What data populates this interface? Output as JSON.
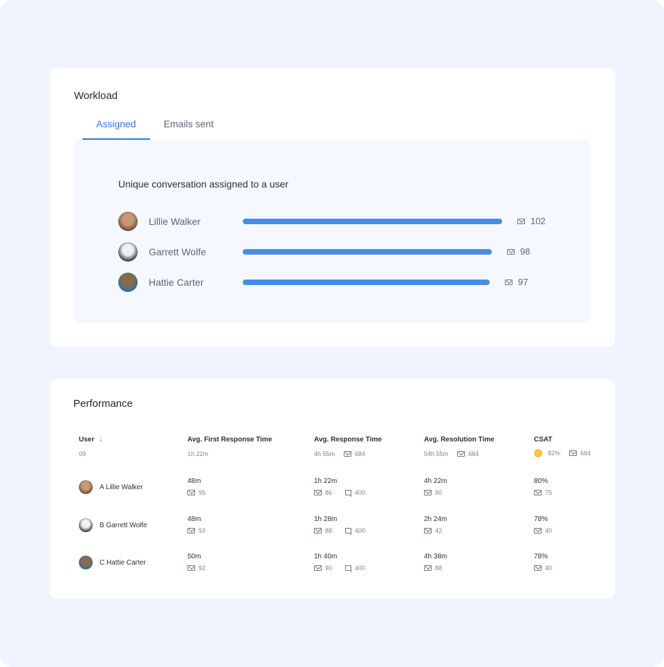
{
  "workload": {
    "title": "Workload",
    "tabs": [
      {
        "label": "Assigned",
        "active": true
      },
      {
        "label": "Emails sent",
        "active": false
      }
    ],
    "panel_title": "Unique conversation assigned to a user",
    "accent": "#4a8be3",
    "rows": [
      {
        "name": "Lillie Walker",
        "value": "102",
        "n": 102
      },
      {
        "name": "Garrett Wolfe",
        "value": "98",
        "n": 98
      },
      {
        "name": "Hattie Carter",
        "value": "97",
        "n": 97
      }
    ]
  },
  "performance": {
    "title": "Performance",
    "headers": [
      "User",
      "Avg. First Response Time",
      "Avg. Response Time",
      "Avg. Resolution Time",
      "CSAT"
    ],
    "summary": {
      "user": "09",
      "first": "1h 22m",
      "resp": "4h 55m",
      "resp_mail": "684",
      "resol": "54h 55m",
      "resol_mail": "684",
      "csat": "82%",
      "csat_mail": "684"
    },
    "rows": [
      {
        "user": "A Lillie Walker",
        "first": "48m",
        "first_mail": "95",
        "resp": "1h 22m",
        "resp_mail": "86",
        "resp_chat": "400",
        "resol": "4h 22m",
        "resol_mail": "90",
        "csat": "80%",
        "csat_mail": "75"
      },
      {
        "user": "B Garrett Wolfe",
        "first": "48m",
        "first_mail": "93",
        "resp": "1h 28m",
        "resp_mail": "88",
        "resp_chat": "400",
        "resol": "2h 24m",
        "resol_mail": "42",
        "csat": "78%",
        "csat_mail": "40"
      },
      {
        "user": "C Hattie Carter",
        "first": "50m",
        "first_mail": "92",
        "resp": "1h 40m",
        "resp_mail": "90",
        "resp_chat": "400",
        "resol": "4h 38m",
        "resol_mail": "88",
        "csat": "78%",
        "csat_mail": "40"
      }
    ]
  }
}
